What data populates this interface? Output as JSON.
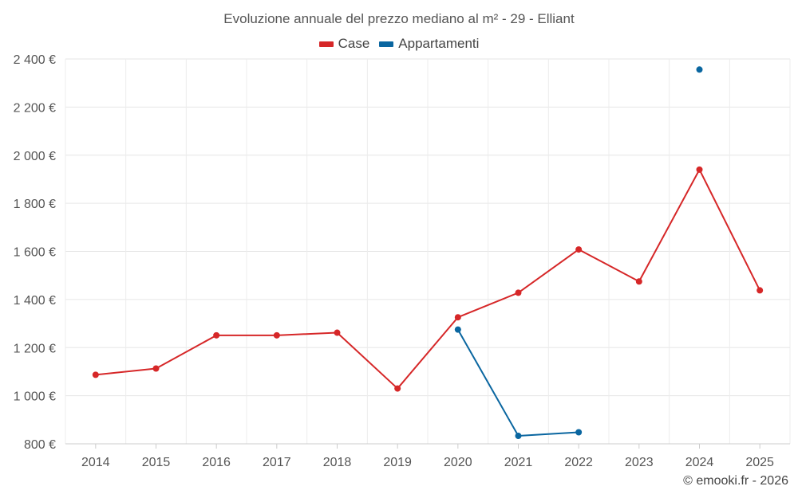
{
  "chart_data": {
    "type": "line",
    "title": "Evoluzione annuale del prezzo mediano al m² - 29 - Elliant",
    "categories": [
      "2014",
      "2015",
      "2016",
      "2017",
      "2018",
      "2019",
      "2020",
      "2021",
      "2022",
      "2023",
      "2024",
      "2025"
    ],
    "series": [
      {
        "name": "Case",
        "color": "#d62728",
        "values": [
          1087,
          1113,
          1251,
          1251,
          1262,
          1030,
          1326,
          1428,
          1608,
          1475,
          1940,
          1438
        ]
      },
      {
        "name": "Appartamenti",
        "color": "#0a66a0",
        "values": [
          null,
          null,
          null,
          null,
          null,
          null,
          1275,
          833,
          848,
          null,
          2356,
          null
        ]
      }
    ],
    "ylim": [
      800,
      2400
    ],
    "yticks": [
      800,
      1000,
      1200,
      1400,
      1600,
      1800,
      2000,
      2200,
      2400
    ],
    "ytick_labels": [
      "800 €",
      "1 000 €",
      "1 200 €",
      "1 400 €",
      "1 600 €",
      "1 800 €",
      "2 000 €",
      "2 200 €",
      "2 400 €"
    ],
    "xlabel": "",
    "ylabel": "",
    "grid": true,
    "legend_position": "top-center"
  },
  "credit": "© emooki.fr - 2026"
}
